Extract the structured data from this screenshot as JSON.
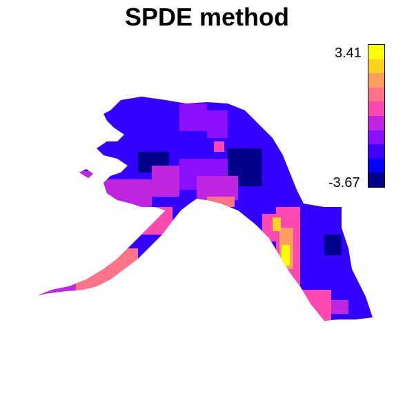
{
  "title": "SPDE method",
  "legend": {
    "max_label": "3.41",
    "min_label": "-3.67",
    "max": 3.41,
    "min": -3.67,
    "colors": [
      "#FFFF00",
      "#FFD320",
      "#FF9F5F",
      "#FF7488",
      "#FF49B0",
      "#C026E0",
      "#8B10FF",
      "#3F00FF",
      "#0000FF",
      "#00008B"
    ]
  }
}
